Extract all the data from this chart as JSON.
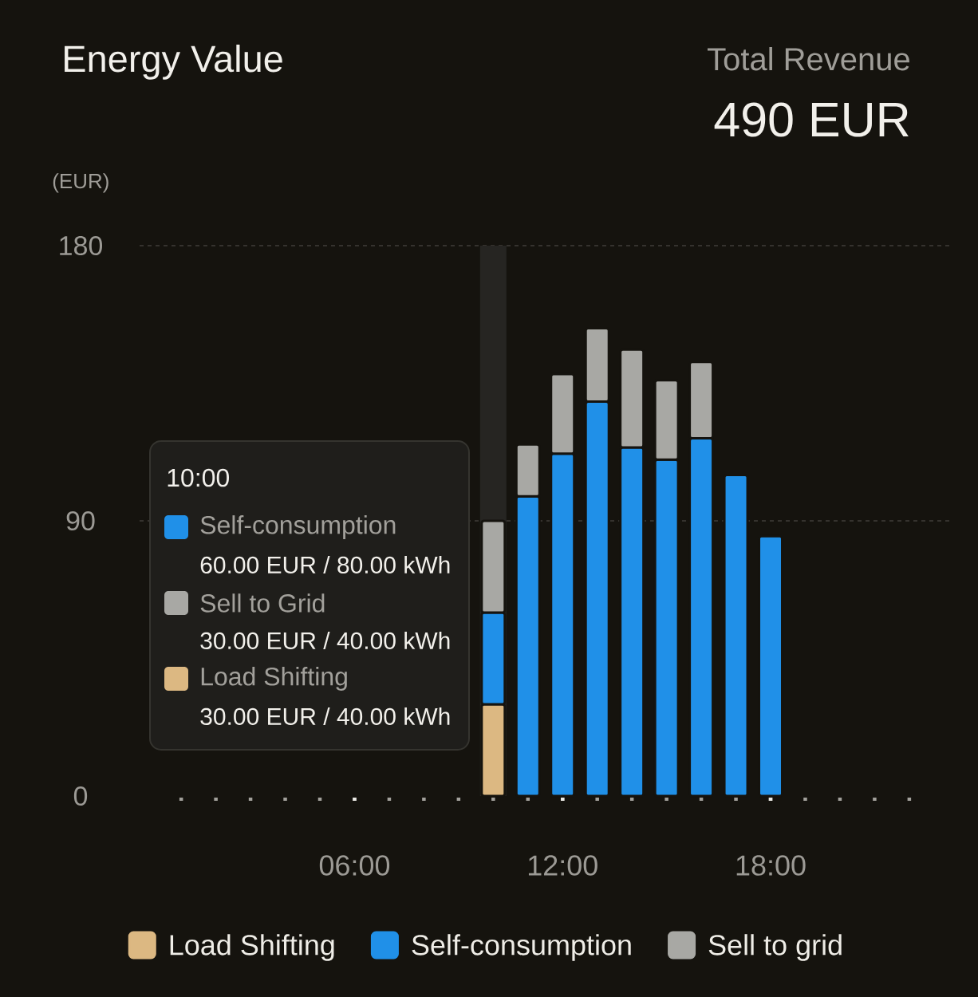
{
  "chart_data": {
    "type": "bar",
    "stacked": true,
    "title": "Energy Value",
    "ylabel": "(EUR)",
    "annotations": [
      "Total Revenue",
      "490 EUR",
      "10:00",
      "Self-consumption",
      "60.00 EUR / 80.00 kWh",
      "Sell to Grid",
      "30.00 EUR / 40.00 kWh",
      "Load Shifting",
      "30.00 EUR / 40.00 kWh"
    ],
    "x": [
      10,
      11,
      12,
      13,
      14,
      15,
      16,
      17,
      18
    ],
    "series": [
      {
        "name": "Load Shifting",
        "color": "#dcb882",
        "values": [
          30,
          0,
          0,
          0,
          0,
          0,
          0,
          0,
          0
        ]
      },
      {
        "name": "Self-consumption",
        "color": "#2090e8",
        "values": [
          30,
          98,
          112,
          129,
          114,
          110,
          117,
          105,
          85
        ]
      },
      {
        "name": "Sell to grid",
        "color": "#a8a8a4",
        "values": [
          30,
          17,
          26,
          24,
          32,
          26,
          25,
          null,
          null
        ]
      }
    ],
    "xlim": [
      -0.2,
      23.2
    ],
    "xticks": [
      {
        "value": 1,
        "label": null
      },
      {
        "value": 2,
        "label": null
      },
      {
        "value": 3,
        "label": null
      },
      {
        "value": 4,
        "label": null
      },
      {
        "value": 5,
        "label": null
      },
      {
        "value": 6,
        "label": "06:00"
      },
      {
        "value": 7,
        "label": null
      },
      {
        "value": 8,
        "label": null
      },
      {
        "value": 9,
        "label": null
      },
      {
        "value": 10,
        "label": null
      },
      {
        "value": 11,
        "label": null
      },
      {
        "value": 12,
        "label": "12:00"
      },
      {
        "value": 13,
        "label": null
      },
      {
        "value": 14,
        "label": null
      },
      {
        "value": 15,
        "label": null
      },
      {
        "value": 16,
        "label": null
      },
      {
        "value": 17,
        "label": null
      },
      {
        "value": 18,
        "label": "18:00"
      },
      {
        "value": 19,
        "label": null
      },
      {
        "value": 20,
        "label": null
      },
      {
        "value": 21,
        "label": null
      },
      {
        "value": 22,
        "label": null
      }
    ],
    "ylim": [
      0,
      180
    ],
    "yticks": [
      0,
      90,
      180
    ],
    "grid": "y",
    "legend": "bottom",
    "bands": [
      {
        "axis": "x",
        "from": 9.62,
        "to": 10.38,
        "color": "#262522"
      }
    ]
  }
}
